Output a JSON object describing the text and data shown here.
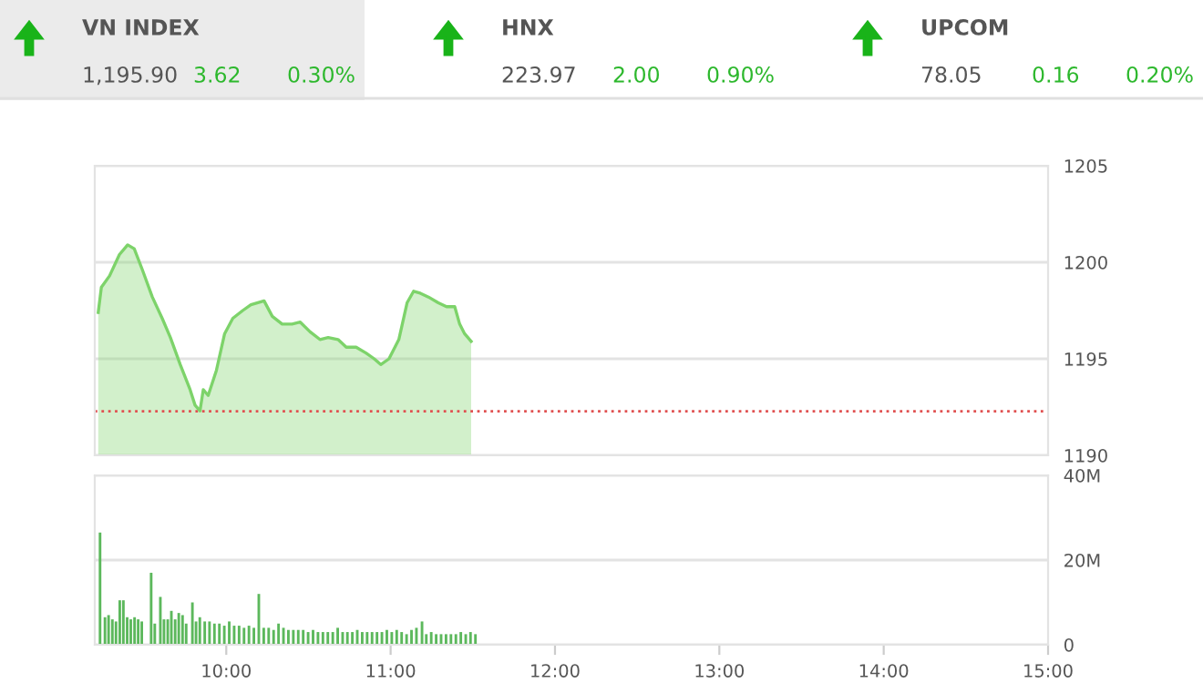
{
  "chart_data": [
    {
      "type": "other",
      "annotations": [
        "VN INDEX",
        "1,195.90",
        "3.62",
        "0.30%",
        "HNX",
        "223.97",
        "2.00",
        "0.90%",
        "UPCOM",
        "78.05",
        "0.16",
        "0.20%"
      ]
    },
    {
      "type": "area",
      "xlim": [
        9.2,
        15
      ],
      "ylim": [
        1190,
        1205
      ],
      "yticks": [
        1190,
        1195,
        1200,
        1205
      ],
      "tick_labels": "y",
      "grid": "y",
      "series": [
        {
          "color": "#7dd36a",
          "x": [
            9.221,
            9.24,
            9.29,
            9.35,
            9.4,
            9.44,
            9.49,
            9.55,
            9.61,
            9.66,
            9.72,
            9.78,
            9.81,
            9.84,
            9.86,
            9.89,
            9.94,
            9.99,
            10.04,
            10.1,
            10.15,
            10.23,
            10.28,
            10.34,
            10.4,
            10.45,
            10.51,
            10.57,
            10.62,
            10.68,
            10.73,
            10.79,
            10.85,
            10.9,
            10.94,
            10.99,
            11.05,
            11.1,
            11.14,
            11.18,
            11.23,
            11.29,
            11.34,
            11.39,
            11.42,
            11.45,
            11.49
          ],
          "values": [
            1197.4,
            1198.7,
            1199.3,
            1200.4,
            1200.9,
            1200.7,
            1199.6,
            1198.2,
            1197.1,
            1196.1,
            1194.7,
            1193.4,
            1192.6,
            1192.3,
            1193.4,
            1193.1,
            1194.4,
            1196.3,
            1197.1,
            1197.5,
            1197.8,
            1198.0,
            1197.2,
            1196.8,
            1196.8,
            1196.9,
            1196.4,
            1196.0,
            1196.1,
            1196.0,
            1195.6,
            1195.6,
            1195.3,
            1195.0,
            1194.7,
            1195.0,
            1196.0,
            1197.9,
            1198.5,
            1198.4,
            1198.2,
            1197.9,
            1197.7,
            1197.7,
            1196.8,
            1196.3,
            1195.9
          ]
        }
      ],
      "ref_lines": [
        {
          "axis": "y",
          "value": 1192.28,
          "color": "#e05050",
          "line_style": "dotted"
        }
      ]
    },
    {
      "type": "bar",
      "xlim": [
        9.2,
        15
      ],
      "xticks": [
        {
          "value": 10,
          "label": "10:00"
        },
        {
          "value": 11,
          "label": "11:00"
        },
        {
          "value": 12,
          "label": "12:00"
        },
        {
          "value": 13,
          "label": "13:00"
        },
        {
          "value": 14,
          "label": "14:00"
        },
        {
          "value": 15,
          "label": "15:00"
        }
      ],
      "ylim": [
        0,
        40
      ],
      "yticks": [
        0,
        {
          "value": 20,
          "label": "20M"
        },
        {
          "value": 40,
          "label": "40M"
        }
      ],
      "grid": "y",
      "series": [
        {
          "color": "#5cb85c",
          "x": [
            9.232,
            9.262,
            9.284,
            9.307,
            9.329,
            9.352,
            9.374,
            9.397,
            9.419,
            9.442,
            9.464,
            9.486,
            9.543,
            9.565,
            9.599,
            9.621,
            9.644,
            9.666,
            9.689,
            9.711,
            9.734,
            9.756,
            9.794,
            9.816,
            9.839,
            9.869,
            9.898,
            9.928,
            9.958,
            9.988,
            10.018,
            10.048,
            10.078,
            10.108,
            10.138,
            10.168,
            10.198,
            10.228,
            10.258,
            10.288,
            10.318,
            10.348,
            10.378,
            10.408,
            10.438,
            10.468,
            10.498,
            10.528,
            10.558,
            10.588,
            10.618,
            10.648,
            10.678,
            10.708,
            10.737,
            10.767,
            10.797,
            10.827,
            10.857,
            10.887,
            10.917,
            10.947,
            10.977,
            11.007,
            11.037,
            11.067,
            11.097,
            11.127,
            11.157,
            11.191,
            11.217,
            11.247,
            11.277,
            11.307,
            11.337,
            11.367,
            11.397,
            11.427,
            11.457,
            11.486,
            11.516
          ],
          "values": [
            26.5,
            6.5,
            7,
            6,
            5.5,
            10.5,
            10.5,
            6.5,
            6,
            6.5,
            6,
            5.5,
            17,
            5,
            11.3,
            6,
            6,
            8,
            6,
            7.5,
            7,
            5,
            10,
            5.5,
            6.5,
            5.5,
            5.5,
            5,
            5,
            4.5,
            5.5,
            4.5,
            4.5,
            4,
            4.5,
            4,
            12,
            4,
            4,
            3.5,
            5,
            4,
            3.5,
            3.5,
            3.5,
            3.5,
            3,
            3.5,
            3,
            3,
            3,
            3,
            4,
            3,
            3,
            3,
            3.5,
            3,
            3,
            3,
            3,
            3,
            3.5,
            3,
            3.5,
            3,
            2.5,
            3.5,
            4,
            5.5,
            2.5,
            3,
            2.5,
            2.5,
            2.5,
            2.5,
            2.5,
            3,
            2.5,
            3,
            2.5
          ]
        }
      ]
    }
  ]
}
